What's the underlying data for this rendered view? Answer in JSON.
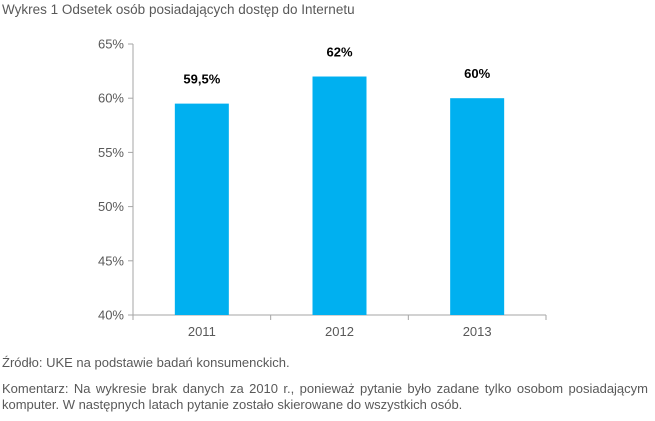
{
  "chart_data": {
    "type": "bar",
    "title": "Wykres 1 Odsetek osób posiadających dostęp do Internetu",
    "categories": [
      "2011",
      "2012",
      "2013"
    ],
    "values": [
      59.5,
      62,
      60
    ],
    "data_labels": [
      "59,5%",
      "62%",
      "60%"
    ],
    "ylim": [
      40,
      65
    ],
    "yticks": [
      40,
      45,
      50,
      55,
      60,
      65
    ],
    "ytick_labels": [
      "40%",
      "45%",
      "50%",
      "55%",
      "60%",
      "65%"
    ],
    "xlabel": "",
    "ylabel": "",
    "grid": false,
    "bar_color": "#00B0F0",
    "axis_color": "#A6A6A6"
  },
  "source_text": "Źródło: UKE na podstawie badań konsumenckich.",
  "comment_text": "Komentarz: Na wykresie brak danych za 2010 r., ponieważ pytanie było zadane tylko osobom posiadającym komputer. W następnych latach pytanie zostało skierowane do wszystkich osób."
}
